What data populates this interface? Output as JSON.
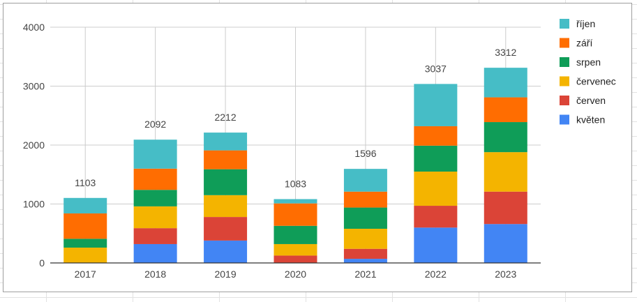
{
  "chart_data": {
    "type": "bar",
    "stacked": true,
    "categories": [
      "2017",
      "2018",
      "2019",
      "2020",
      "2021",
      "2022",
      "2023"
    ],
    "totals": [
      "1103",
      "2092",
      "2212",
      "1083",
      "1596",
      "3037",
      "3312"
    ],
    "ylim": [
      0,
      4000
    ],
    "yticks": [
      "0",
      "1000",
      "2000",
      "3000",
      "4000"
    ],
    "grid": true,
    "legend_position": "right",
    "series": [
      {
        "name": "květen",
        "color": "#4285f4",
        "values": [
          0,
          320,
          380,
          0,
          70,
          600,
          660
        ]
      },
      {
        "name": "červen",
        "color": "#db4437",
        "values": [
          0,
          270,
          400,
          125,
          170,
          370,
          550
        ]
      },
      {
        "name": "červenec",
        "color": "#f4b400",
        "values": [
          260,
          370,
          370,
          195,
          340,
          580,
          670
        ]
      },
      {
        "name": "srpen",
        "color": "#0f9d58",
        "values": [
          150,
          280,
          440,
          310,
          360,
          440,
          510
        ]
      },
      {
        "name": "září",
        "color": "#ff6d01",
        "values": [
          430,
          360,
          320,
          380,
          270,
          330,
          420
        ]
      },
      {
        "name": "říjen",
        "color": "#46bdc6",
        "values": [
          263,
          492,
          302,
          73,
          386,
          717,
          502
        ]
      }
    ]
  }
}
